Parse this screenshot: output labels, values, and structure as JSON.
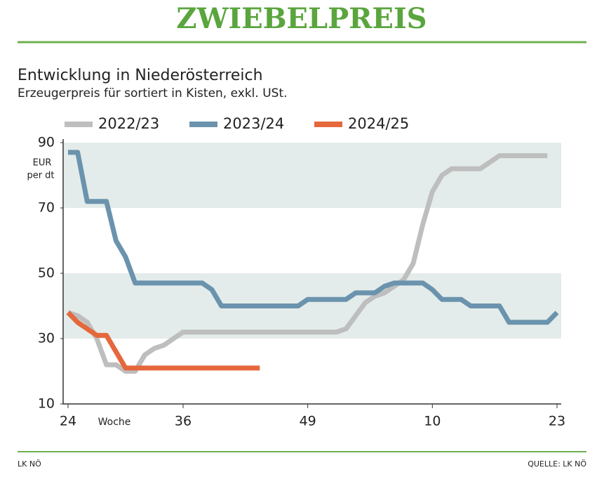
{
  "chart_data": {
    "type": "line",
    "title": "ZWIEBELPREIS",
    "subtitle": "Entwicklung in Niederösterreich",
    "note": "Erzeugerpreis für sortiert in Kisten, exkl. USt.",
    "y_label": [
      "EUR",
      "per dt"
    ],
    "x_label": "Woche",
    "categories": [
      "24",
      null,
      null,
      null,
      null,
      null,
      null,
      null,
      null,
      null,
      null,
      null,
      "36",
      null,
      null,
      null,
      null,
      null,
      null,
      null,
      null,
      null,
      null,
      null,
      null,
      "49",
      null,
      null,
      null,
      null,
      null,
      null,
      null,
      null,
      null,
      null,
      null,
      null,
      "10",
      null,
      null,
      null,
      null,
      null,
      null,
      null,
      null,
      null,
      null,
      null,
      null,
      "23"
    ],
    "series": [
      {
        "name": "2022/23",
        "color": "#bebebe",
        "values": [
          38,
          37,
          35,
          30,
          22,
          22,
          20,
          20,
          25,
          27,
          28,
          30,
          32,
          32,
          32,
          32,
          32,
          32,
          32,
          32,
          32,
          32,
          32,
          32,
          32,
          32,
          32,
          32,
          32,
          33,
          37,
          41,
          43,
          44,
          46,
          48,
          53,
          65,
          75,
          80,
          82,
          82,
          82,
          82,
          84,
          86,
          86,
          86,
          86,
          86,
          86,
          null
        ]
      },
      {
        "name": "2023/24",
        "color": "#6b93ad",
        "values": [
          87,
          87,
          72,
          72,
          72,
          60,
          55,
          47,
          47,
          47,
          47,
          47,
          47,
          47,
          47,
          45,
          40,
          40,
          40,
          40,
          40,
          40,
          40,
          40,
          40,
          42,
          42,
          42,
          42,
          42,
          44,
          44,
          44,
          46,
          47,
          47,
          47,
          47,
          45,
          42,
          42,
          42,
          40,
          40,
          40,
          40,
          35,
          35,
          35,
          35,
          35,
          38
        ]
      },
      {
        "name": "2024/25",
        "color": "#e5683d",
        "values": [
          38,
          35,
          33,
          31,
          31,
          26,
          21,
          21,
          21,
          21,
          21,
          21,
          21,
          21,
          21,
          21,
          21,
          21,
          21,
          21,
          21,
          null,
          null,
          null,
          null,
          null,
          null,
          null,
          null,
          null,
          null,
          null,
          null,
          null,
          null,
          null,
          null,
          null,
          null,
          null,
          null,
          null,
          null,
          null,
          null,
          null,
          null,
          null,
          null,
          null,
          null,
          null
        ]
      }
    ],
    "ylim": [
      10,
      90
    ],
    "yticks": [
      10,
      30,
      50,
      70,
      90
    ],
    "bands": [
      [
        70,
        90
      ],
      [
        30,
        50
      ]
    ],
    "band_color": "#e3ecea",
    "footer_left": "LK NÖ",
    "footer_right": "QUELLE: LK NÖ"
  }
}
